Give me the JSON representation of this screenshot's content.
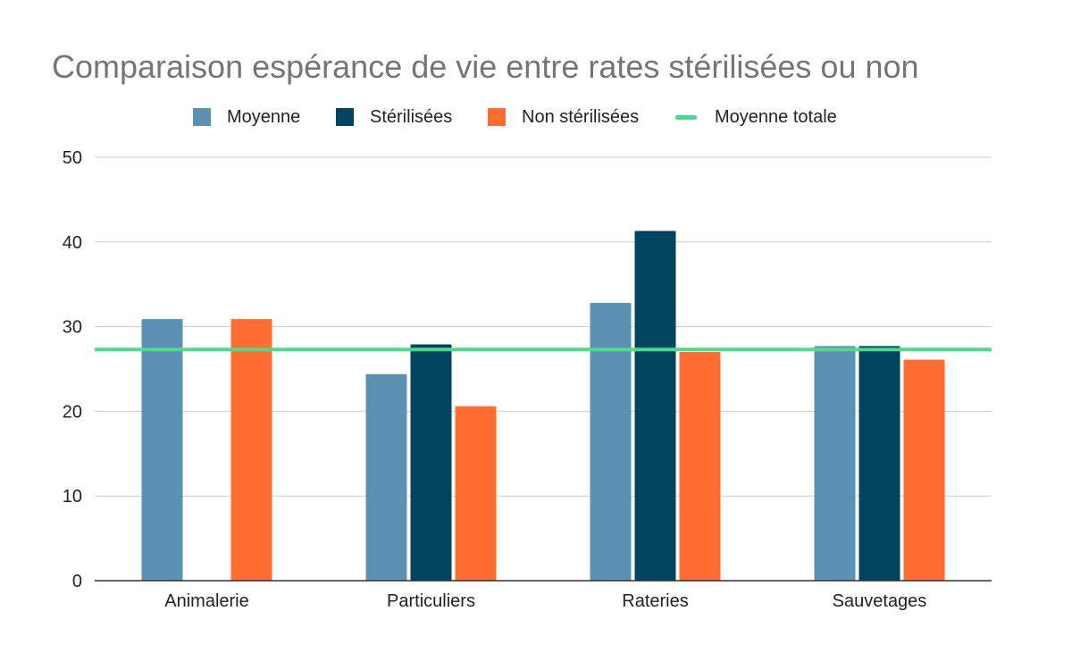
{
  "chart_data": {
    "type": "bar",
    "title": "Comparaison espérance de vie entre rates stérilisées ou non",
    "xlabel": "",
    "ylabel": "",
    "categories": [
      "Animalerie",
      "Particuliers",
      "Rateries",
      "Sauvetages"
    ],
    "series": [
      {
        "name": "Moyenne",
        "color": "#5b91b2",
        "values": [
          30.9,
          24.4,
          32.8,
          27.7
        ]
      },
      {
        "name": "Stérilisées",
        "color": "#00445f",
        "values": [
          null,
          27.9,
          41.3,
          27.7
        ]
      },
      {
        "name": "Non stérilisées",
        "color": "#ff6d33",
        "values": [
          30.9,
          20.6,
          27.0,
          26.1
        ]
      }
    ],
    "reference_line": {
      "name": "Moyenne totale",
      "color": "#4fd98c",
      "value": 27.3
    },
    "ylim": [
      0,
      50
    ],
    "yticks": [
      0,
      10,
      20,
      30,
      40,
      50
    ],
    "grid": true,
    "legend_position": "top"
  }
}
